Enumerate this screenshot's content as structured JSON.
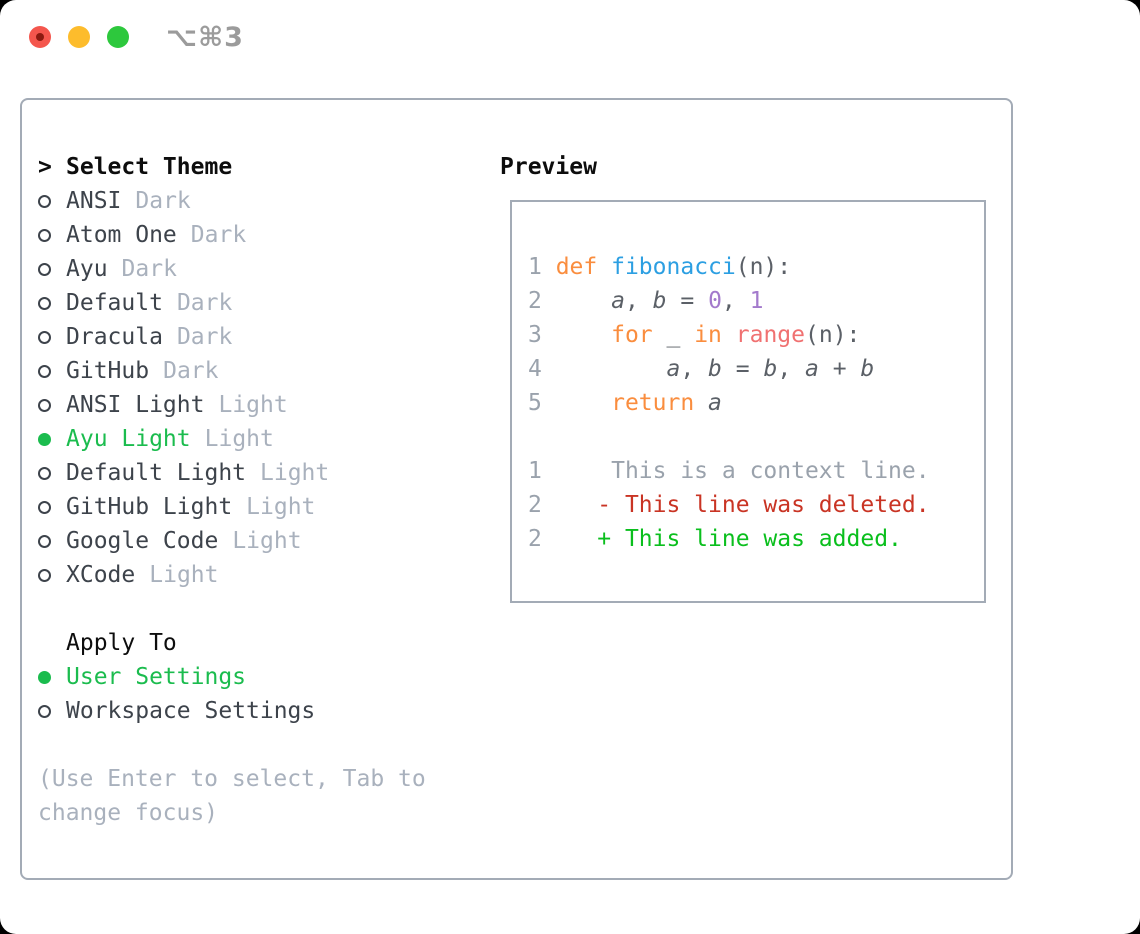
{
  "titlebar": {
    "shortcut": "⌥⌘3",
    "traffic_lights": [
      "close",
      "minimize",
      "zoom"
    ]
  },
  "theme_panel": {
    "header_marker": ">",
    "header": "Select Theme",
    "items": [
      {
        "name": "ANSI",
        "variant": "Dark",
        "selected": false
      },
      {
        "name": "Atom One",
        "variant": "Dark",
        "selected": false
      },
      {
        "name": "Ayu",
        "variant": "Dark",
        "selected": false
      },
      {
        "name": "Default",
        "variant": "Dark",
        "selected": false
      },
      {
        "name": "Dracula",
        "variant": "Dark",
        "selected": false
      },
      {
        "name": "GitHub",
        "variant": "Dark",
        "selected": false
      },
      {
        "name": "ANSI Light",
        "variant": "Light",
        "selected": false
      },
      {
        "name": "Ayu Light",
        "variant": "Light",
        "selected": true
      },
      {
        "name": "Default Light",
        "variant": "Light",
        "selected": false
      },
      {
        "name": "GitHub Light",
        "variant": "Light",
        "selected": false
      },
      {
        "name": "Google Code",
        "variant": "Light",
        "selected": false
      },
      {
        "name": "XCode",
        "variant": "Light",
        "selected": false
      }
    ],
    "apply_to": {
      "header": "Apply To",
      "options": [
        {
          "label": "User Settings",
          "selected": true
        },
        {
          "label": "Workspace Settings",
          "selected": false
        }
      ]
    },
    "hint_lines": [
      "(Use Enter to select, Tab to",
      "change focus)"
    ]
  },
  "preview": {
    "header": "Preview",
    "lines": [
      [
        {
          "t": "1 ",
          "c": "ln"
        },
        {
          "t": "def",
          "c": "kw"
        },
        {
          "t": " ",
          "c": "fg"
        },
        {
          "t": "fibonacci",
          "c": "fn"
        },
        {
          "t": "(n):",
          "c": "fg"
        }
      ],
      [
        {
          "t": "2 ",
          "c": "ln"
        },
        {
          "t": "    ",
          "c": "fg"
        },
        {
          "t": "a",
          "c": "var"
        },
        {
          "t": ", ",
          "c": "fg"
        },
        {
          "t": "b",
          "c": "var"
        },
        {
          "t": " = ",
          "c": "fg"
        },
        {
          "t": "0",
          "c": "num"
        },
        {
          "t": ", ",
          "c": "fg"
        },
        {
          "t": "1",
          "c": "num"
        }
      ],
      [
        {
          "t": "3 ",
          "c": "ln"
        },
        {
          "t": "    ",
          "c": "fg"
        },
        {
          "t": "for",
          "c": "kw"
        },
        {
          "t": " _ ",
          "c": "fg"
        },
        {
          "t": "in",
          "c": "kw"
        },
        {
          "t": " ",
          "c": "fg"
        },
        {
          "t": "range",
          "c": "sp"
        },
        {
          "t": "(n):",
          "c": "fg"
        }
      ],
      [
        {
          "t": "4 ",
          "c": "ln"
        },
        {
          "t": "        ",
          "c": "fg"
        },
        {
          "t": "a",
          "c": "var"
        },
        {
          "t": ", ",
          "c": "fg"
        },
        {
          "t": "b",
          "c": "var"
        },
        {
          "t": " = ",
          "c": "fg"
        },
        {
          "t": "b",
          "c": "var"
        },
        {
          "t": ", ",
          "c": "fg"
        },
        {
          "t": "a",
          "c": "var"
        },
        {
          "t": " + ",
          "c": "fg"
        },
        {
          "t": "b",
          "c": "var"
        }
      ],
      [
        {
          "t": "5 ",
          "c": "ln"
        },
        {
          "t": "    ",
          "c": "fg"
        },
        {
          "t": "return",
          "c": "kw"
        },
        {
          "t": " ",
          "c": "fg"
        },
        {
          "t": "a",
          "c": "var"
        }
      ],
      [],
      [
        {
          "t": "1",
          "c": "ln"
        },
        {
          "t": "     This is a context line.",
          "c": "ctx"
        }
      ],
      [
        {
          "t": "2",
          "c": "ln"
        },
        {
          "t": "    - This line was deleted.",
          "c": "del"
        }
      ],
      [
        {
          "t": "2",
          "c": "ln"
        },
        {
          "t": "    + This line was added.",
          "c": "add"
        }
      ]
    ]
  },
  "colors": {
    "accent_green": "#1bbc4e",
    "diff_added_green": "#0abf1d",
    "diff_deleted_red": "#c93424",
    "syntax_keyword_orange": "#fa8d3e",
    "syntax_function_blue": "#2c9fe2",
    "syntax_number_purple": "#a37acc",
    "syntax_special_coral": "#f07171",
    "code_foreground": "#5b6067",
    "line_number_gray": "#9aa2ac",
    "item_text_gray": "#3d434b",
    "muted_gray": "#a9b1bd",
    "panel_border_gray": "#a3abb6",
    "traffic_red": "#f4564d",
    "traffic_red_dot": "#8b1a10",
    "traffic_yellow": "#fdbc2c",
    "traffic_green": "#2dc83d",
    "titlebar_gray": "#9b9b9b"
  }
}
